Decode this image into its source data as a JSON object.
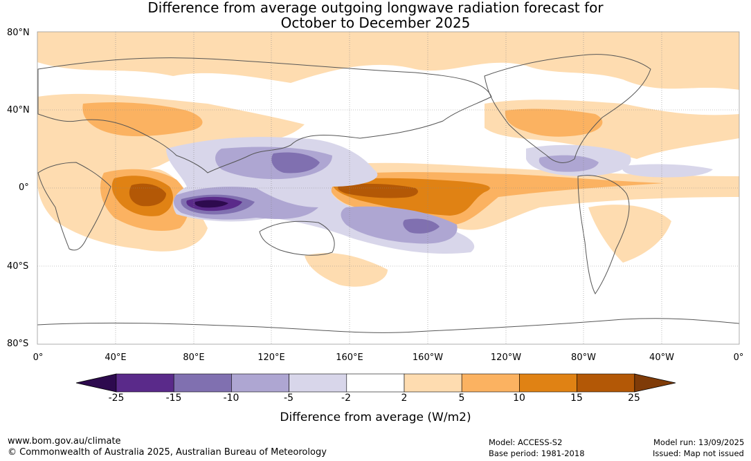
{
  "title": {
    "line1": "Difference from average outgoing longwave radiation forecast for",
    "line2": "October to December 2025"
  },
  "map": {
    "lat_labels": [
      "80°N",
      "40°N",
      "0°",
      "40°S",
      "80°S"
    ],
    "lon_labels": [
      "0°",
      "40°E",
      "80°E",
      "120°E",
      "160°E",
      "160°W",
      "120°W",
      "80°W",
      "40°W",
      "0°"
    ],
    "gridlines": true
  },
  "colorbar": {
    "ticks": [
      "-25",
      "-15",
      "-10",
      "-5",
      "-2",
      "2",
      "5",
      "10",
      "15",
      "25"
    ],
    "colors": [
      "#2d0a4e",
      "#5a2a8a",
      "#8070b0",
      "#aea6d2",
      "#d8d6ea",
      "#ffffff",
      "#fedcb0",
      "#fbb261",
      "#e08214",
      "#b35806",
      "#7f3b08"
    ],
    "label": "Difference from average (W/m2)"
  },
  "footer": {
    "url": "www.bom.gov.au/climate",
    "copyright": "© Commonwealth of Australia 2025, Australian Bureau of Meteorology",
    "model": "Model: ACCESS-S2",
    "base_period": "Base period: 1981-2018",
    "model_run": "Model run: 13/09/2025",
    "issued": "Issued: Map not issued"
  }
}
